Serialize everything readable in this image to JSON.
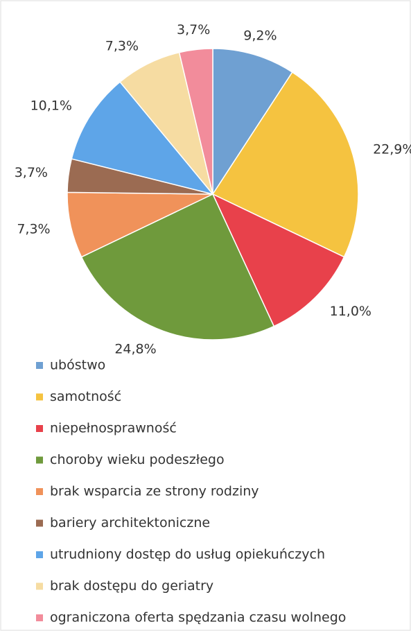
{
  "chart_data": {
    "type": "pie",
    "categories": [
      "ubóstwo",
      "samotność",
      "niepełnosprawność",
      "choroby wieku podeszłego",
      "brak wsparcia ze strony rodziny",
      "bariery architektoniczne",
      "utrudniony dostęp do usług opiekuńczych",
      "brak dostępu do geriatry",
      "ograniczona oferta spędzania czasu wolnego"
    ],
    "values": [
      9.2,
      22.9,
      11.0,
      24.8,
      7.3,
      3.7,
      10.1,
      7.3,
      3.7
    ],
    "value_labels": [
      "9,2%",
      "22,9%",
      "11,0%",
      "24,8%",
      "7,3%",
      "3,7%",
      "10,1%",
      "7,3%",
      "3,7%"
    ],
    "colors": [
      "#6fa0d2",
      "#f5c340",
      "#e8414b",
      "#6f9a3c",
      "#f0925a",
      "#9b6b52",
      "#5ea5e8",
      "#f6dca2",
      "#f28c9b"
    ]
  }
}
